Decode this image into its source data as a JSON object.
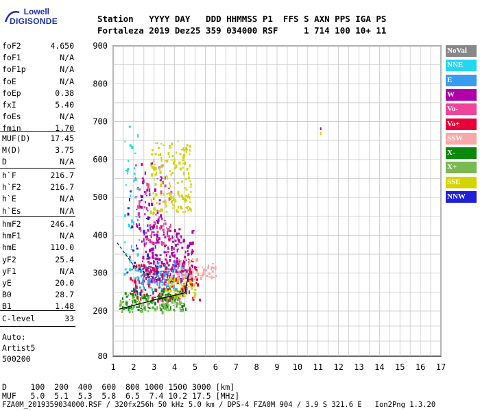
{
  "logo": {
    "line1": "Lowell",
    "line2": "DIGISONDE"
  },
  "header": {
    "line1": "Station   YYYY DAY   DDD HHMMSS P1  FFS S AXN PPS IGA PS",
    "line2": "Fortaleza 2019 Dez25 359 034000 RSF     1 714 100 10+ 11"
  },
  "params_group1": [
    {
      "k": "foF2",
      "v": "4.650"
    },
    {
      "k": "foF1",
      "v": "N/A"
    },
    {
      "k": "foF1p",
      "v": "N/A"
    },
    {
      "k": "foE",
      "v": "N/A"
    },
    {
      "k": "foEp",
      "v": "0.38"
    },
    {
      "k": "fxI",
      "v": "5.40"
    },
    {
      "k": "foEs",
      "v": "N/A"
    },
    {
      "k": "fmin",
      "v": "1.70"
    }
  ],
  "params_group2": [
    {
      "k": "MUF(D)",
      "v": "17.45"
    },
    {
      "k": "M(D)",
      "v": "3.75"
    },
    {
      "k": "D",
      "v": "N/A"
    }
  ],
  "params_group3": [
    {
      "k": "h`F",
      "v": "216.7"
    },
    {
      "k": "h`F2",
      "v": "216.7"
    },
    {
      "k": "h`E",
      "v": "N/A"
    },
    {
      "k": "h`Es",
      "v": "N/A"
    }
  ],
  "params_group4": [
    {
      "k": "hmF2",
      "v": "246.4"
    },
    {
      "k": "hmF1",
      "v": "N/A"
    },
    {
      "k": "hmE",
      "v": "110.0"
    },
    {
      "k": "yF2",
      "v": "25.4"
    },
    {
      "k": "yF1",
      "v": "N/A"
    },
    {
      "k": "yE",
      "v": "20.0"
    },
    {
      "k": "B0",
      "v": "28.7"
    },
    {
      "k": "B1",
      "v": "1.48"
    }
  ],
  "params_group5": [
    {
      "k": "C-level",
      "v": "33"
    }
  ],
  "auto": {
    "line1": "Auto:",
    "line2": "Artist5",
    "line3": "500200"
  },
  "legend": [
    {
      "label": "NoVal",
      "color": "#888888"
    },
    {
      "label": "NNE",
      "color": "#22d8f0"
    },
    {
      "label": "E",
      "color": "#3a9cf0"
    },
    {
      "label": "W",
      "color": "#b000a8"
    },
    {
      "label": "Vo-",
      "color": "#f0449a"
    },
    {
      "label": "Vo+",
      "color": "#e8003a"
    },
    {
      "label": "SSW",
      "color": "#f8a8a8"
    },
    {
      "label": "X-",
      "color": "#0a8a0a"
    },
    {
      "label": "X+",
      "color": "#7ab850"
    },
    {
      "label": "SSE",
      "color": "#d4d400"
    },
    {
      "label": "NNW",
      "color": "#2020d8"
    }
  ],
  "chart_data": {
    "type": "scatter",
    "title": "",
    "xlabel": "",
    "ylabel": "",
    "xlim": [
      1,
      17
    ],
    "ylim": [
      80,
      900
    ],
    "xticks": [
      1,
      2,
      3,
      4,
      5,
      6,
      7,
      8,
      9,
      10,
      11,
      12,
      13,
      14,
      15,
      16,
      17
    ],
    "yticks": [
      80,
      200,
      300,
      400,
      500,
      600,
      700,
      800,
      900
    ],
    "grid": true,
    "clusters": [
      {
        "series": "W",
        "color": "#b000a8",
        "x": [
          2.4,
          4.9
        ],
        "y": [
          280,
          420
        ],
        "n": 260
      },
      {
        "series": "W",
        "color": "#b000a8",
        "x": [
          2.0,
          3.4
        ],
        "y": [
          420,
          600
        ],
        "n": 60
      },
      {
        "series": "Vo-",
        "color": "#f0449a",
        "x": [
          2.0,
          3.8
        ],
        "y": [
          380,
          560
        ],
        "n": 70
      },
      {
        "series": "E",
        "color": "#3a9cf0",
        "x": [
          2.0,
          4.6
        ],
        "y": [
          260,
          330
        ],
        "n": 140
      },
      {
        "series": "SSE",
        "color": "#d4d400",
        "x": [
          2.8,
          4.8
        ],
        "y": [
          460,
          650
        ],
        "n": 150
      },
      {
        "series": "SSE",
        "color": "#d4d400",
        "x": [
          3.5,
          5.0
        ],
        "y": [
          240,
          290
        ],
        "n": 60
      },
      {
        "series": "Vo+",
        "color": "#e8003a",
        "x": [
          1.8,
          5.2
        ],
        "y": [
          230,
          330
        ],
        "n": 130
      },
      {
        "series": "SSW",
        "color": "#f8a8a8",
        "x": [
          4.0,
          6.0
        ],
        "y": [
          290,
          340
        ],
        "n": 60
      },
      {
        "series": "X-",
        "color": "#0a8a0a",
        "x": [
          1.4,
          4.6
        ],
        "y": [
          205,
          260
        ],
        "n": 110
      },
      {
        "series": "X+",
        "color": "#7ab850",
        "x": [
          1.3,
          4.4
        ],
        "y": [
          200,
          250
        ],
        "n": 90
      },
      {
        "series": "NNE",
        "color": "#22d8f0",
        "x": [
          1.5,
          2.2
        ],
        "y": [
          300,
          720
        ],
        "n": 40
      },
      {
        "series": "NNW",
        "color": "#2020d8",
        "x": [
          1.6,
          3.3
        ],
        "y": [
          250,
          520
        ],
        "n": 35
      }
    ],
    "isolated_points": [
      {
        "series": "W",
        "color": "#b000a8",
        "x": 11.1,
        "y": 685
      },
      {
        "series": "SSE",
        "color": "#d4d400",
        "x": 11.1,
        "y": 672
      }
    ],
    "trace_solid": {
      "x": [
        1.3,
        1.8,
        2.5,
        3.2,
        3.9,
        4.5,
        4.7
      ],
      "y": [
        205,
        212,
        222,
        232,
        240,
        248,
        300
      ]
    },
    "trace_dashed": {
      "x": [
        1.2,
        1.6,
        2.0,
        2.6,
        3.2
      ],
      "y": [
        380,
        350,
        320,
        300,
        280
      ]
    }
  },
  "footer": {
    "line1": "D     100  200  400  600  800 1000 1500 3000 [km]",
    "line2": "MUF   5.0  5.1  5.3  5.8  6.5  7.4 10.2 17.5 [MHz]",
    "line3": "FZA0M_2019359034000.RSF / 320fx256h 50 kHz 5.0 km / DPS-4 FZA0M 904 / 3.9 S 321.6 E   Ion2Png 1.3.20"
  }
}
